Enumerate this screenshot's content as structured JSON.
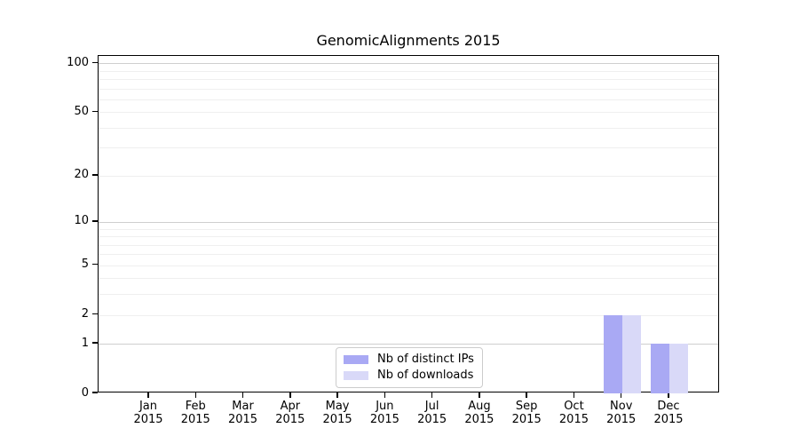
{
  "title": "GenomicAlignments 2015",
  "chart_data": {
    "type": "bar",
    "title": "GenomicAlignments 2015",
    "categories": [
      "Jan",
      "Feb",
      "Mar",
      "Apr",
      "May",
      "Jun",
      "Jul",
      "Aug",
      "Sep",
      "Oct",
      "Nov",
      "Dec"
    ],
    "x_tick_year": "2015",
    "series": [
      {
        "name": "Nb of distinct IPs",
        "color": "#a9a9f4",
        "values": [
          0,
          0,
          0,
          0,
          0,
          0,
          0,
          0,
          0,
          0,
          2,
          1
        ]
      },
      {
        "name": "Nb of downloads",
        "color": "#d9d9f8",
        "values": [
          0,
          0,
          0,
          0,
          0,
          0,
          0,
          0,
          0,
          0,
          2,
          1
        ]
      }
    ],
    "xlabel": "",
    "ylabel": "",
    "yscale": "log1p",
    "ylim": [
      0,
      111
    ],
    "y_ticks": [
      0,
      1,
      2,
      5,
      10,
      20,
      50,
      100
    ],
    "grid": {
      "major_lines": [
        1,
        10,
        100
      ],
      "minor_lines": [
        2,
        3,
        4,
        5,
        6,
        7,
        8,
        9,
        20,
        30,
        40,
        50,
        60,
        70,
        80,
        90
      ],
      "major_color": "#cfcfcf",
      "minor_color": "#efefef"
    },
    "legend_position": "lower center",
    "background_color": "#ffffff",
    "spine_color": "#000000"
  }
}
